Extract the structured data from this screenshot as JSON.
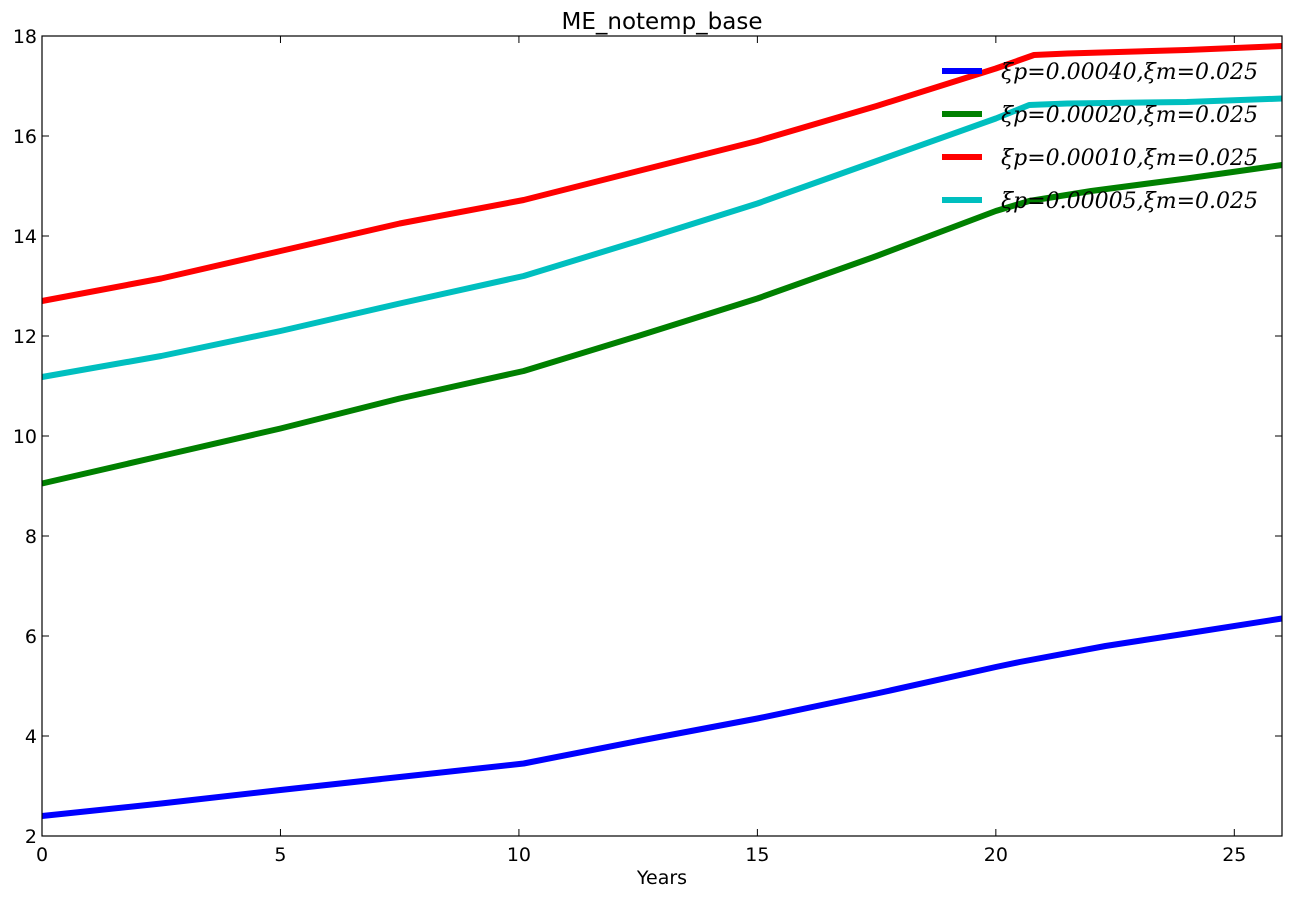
{
  "chart_data": {
    "type": "line",
    "title": "ME_notemp_base",
    "xlabel": "Years",
    "ylabel": "",
    "xlim": [
      0,
      26
    ],
    "ylim": [
      2,
      18
    ],
    "xticks": [
      0,
      5,
      10,
      15,
      20,
      25
    ],
    "yticks": [
      2,
      4,
      6,
      8,
      10,
      12,
      14,
      16,
      18
    ],
    "grid": false,
    "legend_position": "top-right",
    "series": [
      {
        "name": "ξp=0.00040,ξm=0.025",
        "color": "#0000ff",
        "x": [
          0,
          2.5,
          5,
          7.5,
          10.1,
          12.5,
          15,
          17.5,
          20,
          20.5,
          22.3,
          24,
          26
        ],
        "y": [
          2.4,
          2.65,
          2.92,
          3.18,
          3.45,
          3.9,
          4.35,
          4.85,
          5.38,
          5.48,
          5.8,
          6.05,
          6.35
        ]
      },
      {
        "name": "ξp=0.00020,ξm=0.025",
        "color": "#008000",
        "x": [
          0,
          2.5,
          5,
          7.5,
          10.1,
          12.5,
          15,
          17.5,
          20,
          20.7,
          22,
          24,
          26
        ],
        "y": [
          9.05,
          9.6,
          10.15,
          10.75,
          11.3,
          12.0,
          12.75,
          13.6,
          14.5,
          14.7,
          14.9,
          15.15,
          15.42
        ]
      },
      {
        "name": "ξp=0.00010,ξm=0.025",
        "color": "#ff0000",
        "x": [
          0,
          2.5,
          5,
          7.5,
          10.1,
          12.5,
          15,
          17.5,
          20,
          20.8,
          21.5,
          24,
          26
        ],
        "y": [
          12.7,
          13.15,
          13.7,
          14.25,
          14.72,
          15.3,
          15.9,
          16.6,
          17.35,
          17.62,
          17.65,
          17.72,
          17.8
        ]
      },
      {
        "name": "ξp=0.00005,ξm=0.025",
        "color": "#00bfbf",
        "x": [
          0,
          2.5,
          5,
          7.5,
          10.1,
          12.5,
          15,
          17.5,
          20,
          20.7,
          21.5,
          24,
          26
        ],
        "y": [
          11.18,
          11.6,
          12.1,
          12.65,
          13.2,
          13.9,
          14.65,
          15.5,
          16.35,
          16.62,
          16.65,
          16.68,
          16.75
        ]
      }
    ]
  }
}
